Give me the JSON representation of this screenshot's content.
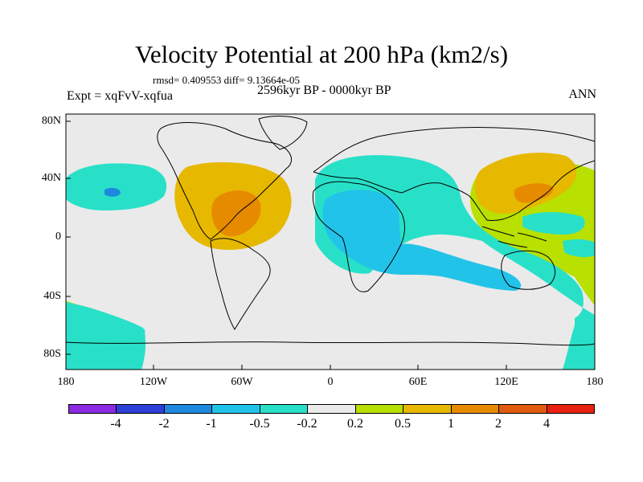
{
  "title": "Velocity Potential at 200 hPa (km2/s)",
  "stats": "rmsd= 0.409553  diff= 9.13664e-05",
  "period": "2596kyr BP - 0000kyr BP",
  "experiment": "Expt = xqFvV-xqfua",
  "season": "ANN",
  "lat_labels": [
    "80N",
    "40N",
    "0",
    "40S",
    "80S"
  ],
  "lon_labels": [
    "180",
    "120W",
    "60W",
    "0",
    "60E",
    "120E",
    "180"
  ],
  "colorbar": {
    "colors": [
      "#8a2be2",
      "#2e3fd8",
      "#1e88e0",
      "#22c3e8",
      "#28e0c8",
      "#eaeaea",
      "#b8e000",
      "#e6b800",
      "#e68a00",
      "#e05a10",
      "#e82010"
    ],
    "labels": [
      "-4",
      "-2",
      "-1",
      "-0.5",
      "-0.2",
      "0.2",
      "0.5",
      "1",
      "2",
      "4"
    ]
  },
  "field_colors": {
    "base": "#b8e000",
    "neutral": "#eaeaea",
    "neg_weak": "#28e0c8",
    "neg_mod": "#22c3e8",
    "neg_str": "#1e88e0",
    "pos_weak": "#e6b800",
    "pos_mod": "#e68a00"
  }
}
